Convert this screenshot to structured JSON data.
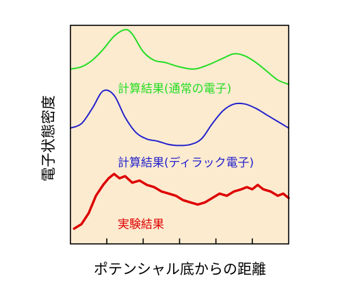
{
  "chart_data": {
    "type": "line",
    "title": "",
    "xlabel": "ポテンシャル底からの距離",
    "ylabel": "電子状態密度",
    "xlim": [
      0,
      6
    ],
    "ylim": [
      0,
      1
    ],
    "x_ticks": [
      1,
      2,
      3,
      4,
      5
    ],
    "x_tick_labels": [],
    "y_tick_labels": [],
    "grid": false,
    "legend": "none",
    "background_color": "#fdebd0",
    "series": [
      {
        "label": "計算結果(通常の電子)",
        "color": "#22dd22",
        "x": [
          0,
          0.3,
          0.6,
          0.9,
          1.2,
          1.5,
          1.7,
          2.0,
          2.3,
          2.6,
          3.0,
          3.4,
          3.8,
          4.2,
          4.5,
          4.8,
          5.1,
          5.4,
          5.7,
          6.0
        ],
        "y": [
          0.8,
          0.81,
          0.84,
          0.89,
          0.95,
          0.98,
          0.96,
          0.88,
          0.84,
          0.83,
          0.81,
          0.8,
          0.82,
          0.85,
          0.87,
          0.86,
          0.83,
          0.79,
          0.75,
          0.73
        ]
      },
      {
        "label": "計算結果(ディラック電子)",
        "color": "#2222cc",
        "x": [
          0,
          0.3,
          0.6,
          0.9,
          1.2,
          1.5,
          1.8,
          2.1,
          2.4,
          2.7,
          3.0,
          3.3,
          3.6,
          3.9,
          4.2,
          4.5,
          4.8,
          5.1,
          5.4,
          5.7,
          6.0
        ],
        "y": [
          0.53,
          0.55,
          0.62,
          0.7,
          0.68,
          0.58,
          0.51,
          0.48,
          0.47,
          0.455,
          0.45,
          0.455,
          0.48,
          0.55,
          0.61,
          0.64,
          0.64,
          0.62,
          0.59,
          0.56,
          0.53
        ]
      },
      {
        "label": "実験結果",
        "color": "#dd0000",
        "x": [
          0.1,
          0.3,
          0.5,
          0.7,
          0.9,
          1.05,
          1.2,
          1.35,
          1.5,
          1.7,
          1.9,
          2.1,
          2.3,
          2.5,
          2.7,
          2.9,
          3.1,
          3.3,
          3.5,
          3.7,
          3.9,
          4.1,
          4.3,
          4.5,
          4.7,
          4.85,
          5.0,
          5.15,
          5.3,
          5.5,
          5.7,
          5.85,
          6.0
        ],
        "y": [
          0.07,
          0.09,
          0.14,
          0.22,
          0.27,
          0.3,
          0.32,
          0.3,
          0.31,
          0.28,
          0.29,
          0.27,
          0.26,
          0.24,
          0.23,
          0.22,
          0.2,
          0.19,
          0.18,
          0.19,
          0.21,
          0.23,
          0.22,
          0.24,
          0.25,
          0.26,
          0.25,
          0.27,
          0.25,
          0.24,
          0.22,
          0.23,
          0.21
        ]
      }
    ]
  }
}
